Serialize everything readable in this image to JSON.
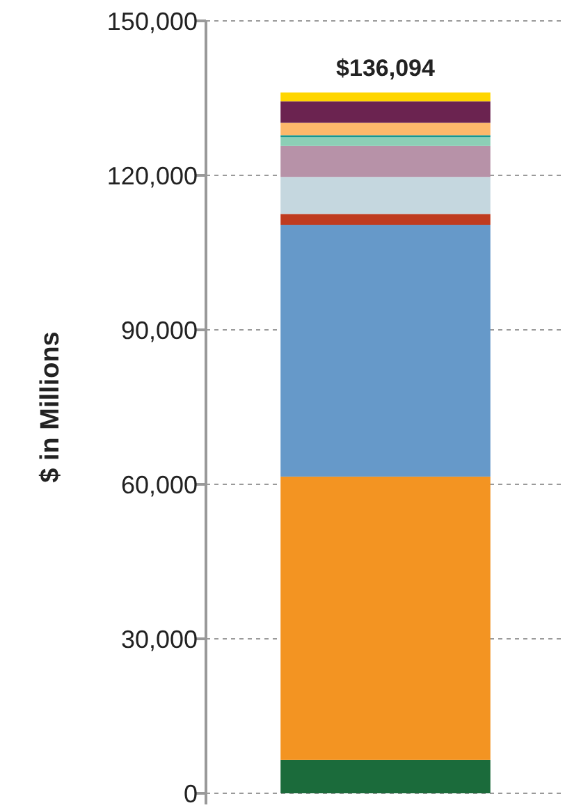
{
  "chart_data": {
    "type": "bar",
    "stacked": true,
    "ylabel": "$ in Millions",
    "categories": [
      null
    ],
    "series": [
      {
        "color": "#1b6b3b",
        "values": [
          6500
        ]
      },
      {
        "color": "#f39422",
        "values": [
          55000
        ]
      },
      {
        "color": "#6699c9",
        "values": [
          48900
        ]
      },
      {
        "color": "#bf3b1f",
        "values": [
          2100
        ]
      },
      {
        "color": "#c5d7df",
        "values": [
          7200
        ]
      },
      {
        "color": "#b792a8",
        "values": [
          6000
        ]
      },
      {
        "color": "#8ccfb6",
        "values": [
          1700
        ]
      },
      {
        "color": "#17968f",
        "values": [
          400
        ]
      },
      {
        "color": "#fdb86b",
        "values": [
          2400
        ]
      },
      {
        "color": "#6b2350",
        "values": [
          4200
        ]
      },
      {
        "color": "#ffd600",
        "values": [
          1700
        ]
      }
    ],
    "totals": [
      "$136,094"
    ],
    "ylim": [
      0,
      150000
    ],
    "yticks": [
      {
        "value": 0,
        "label": "0"
      },
      {
        "value": 30000,
        "label": "30,000"
      },
      {
        "value": 60000,
        "label": "60,000"
      },
      {
        "value": 90000,
        "label": "90,000"
      },
      {
        "value": 120000,
        "label": "120,000"
      },
      {
        "value": 150000,
        "label": "150,000"
      }
    ],
    "grid": "y"
  }
}
